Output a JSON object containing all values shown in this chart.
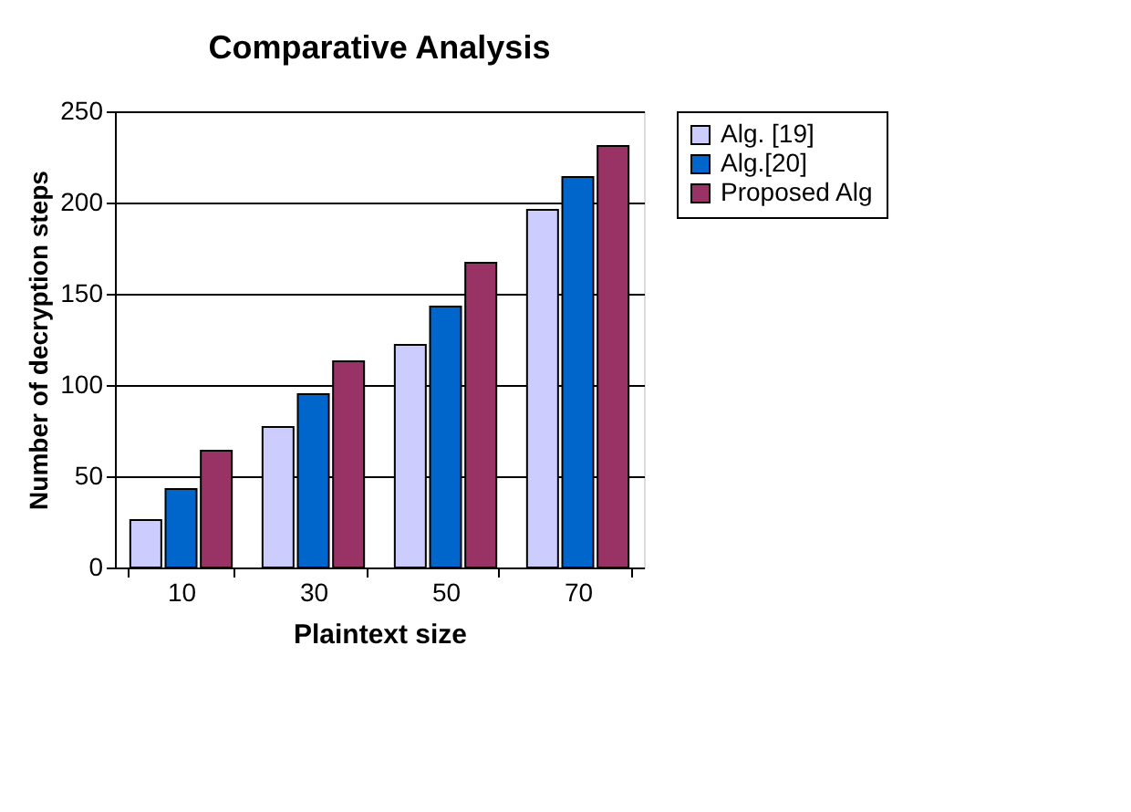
{
  "chart_data": {
    "type": "bar",
    "title": "Comparative Analysis",
    "xlabel": "Plaintext size",
    "ylabel": "Number of decryption steps",
    "categories": [
      "10",
      "30",
      "50",
      "70"
    ],
    "series": [
      {
        "name": "Alg. [19]",
        "color": "#ccccff",
        "values": [
          26,
          77,
          122,
          196
        ]
      },
      {
        "name": "Alg.[20]",
        "color": "#0066cc",
        "values": [
          43,
          95,
          143,
          214
        ]
      },
      {
        "name": "Proposed Alg",
        "color": "#993366",
        "values": [
          64,
          113,
          167,
          231
        ]
      }
    ],
    "ylim": [
      0,
      250
    ],
    "yticks": [
      0,
      50,
      100,
      150,
      200,
      250
    ],
    "grid": "y",
    "legend": "right"
  }
}
